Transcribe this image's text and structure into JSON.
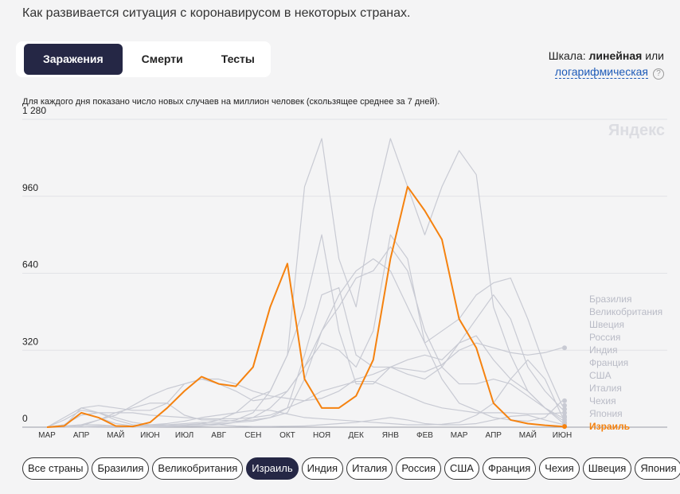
{
  "header": {
    "title": "Как развивается ситуация с коронавирусом в некоторых странах."
  },
  "tabs": {
    "items": [
      "Заражения",
      "Смерти",
      "Тесты"
    ],
    "selected_index": 0
  },
  "scale": {
    "label": "Шкала:",
    "options": [
      "линейная",
      "логарифмическая"
    ],
    "joiner": "или",
    "help": "?"
  },
  "note": "Для каждого дня показано число новых случаев на миллион человек (скользящее среднее за 7 дней).",
  "watermark": "Яндекс",
  "chips": {
    "items": [
      "Все страны",
      "Бразилия",
      "Великобритания",
      "Израиль",
      "Индия",
      "Италия",
      "Россия",
      "США",
      "Франция",
      "Чехия",
      "Швеция",
      "Япония"
    ],
    "selected_index": 3
  },
  "chart_data": {
    "type": "line",
    "categories": [
      "МАР",
      null,
      "АПР",
      null,
      "МАЙ",
      null,
      "ИЮН",
      null,
      "ИЮЛ",
      null,
      "АВГ",
      null,
      "СЕН",
      null,
      "ОКТ",
      null,
      "НОЯ",
      null,
      "ДЕК",
      null,
      "ЯНВ",
      null,
      "ФЕВ",
      null,
      "МАР",
      null,
      "АПР",
      null,
      "МАЙ",
      null,
      "ИЮН"
    ],
    "ylim": [
      0,
      1280
    ],
    "yticks": [
      0,
      320,
      640,
      960,
      {
        "value": 1280,
        "label": "1 280"
      }
    ],
    "grid": true,
    "highlight": "Израиль",
    "series": [
      {
        "name": "Бразилия",
        "color": "#c8cad3",
        "values": [
          0,
          2,
          10,
          30,
          50,
          90,
          130,
          160,
          180,
          200,
          200,
          180,
          150,
          130,
          120,
          110,
          120,
          150,
          200,
          220,
          250,
          240,
          230,
          260,
          320,
          350,
          330,
          310,
          300,
          310,
          330
        ]
      },
      {
        "name": "Великобритания",
        "color": "#c8cad3",
        "values": [
          0,
          30,
          70,
          60,
          40,
          20,
          10,
          10,
          8,
          10,
          15,
          20,
          40,
          80,
          150,
          250,
          350,
          320,
          250,
          400,
          800,
          700,
          350,
          200,
          100,
          70,
          40,
          30,
          25,
          40,
          110
        ]
      },
      {
        "name": "Швеция",
        "color": "#c8cad3",
        "values": [
          0,
          10,
          50,
          60,
          60,
          80,
          100,
          100,
          50,
          30,
          30,
          25,
          30,
          40,
          60,
          200,
          400,
          550,
          650,
          700,
          650,
          500,
          350,
          400,
          450,
          550,
          600,
          620,
          450,
          250,
          90
        ]
      },
      {
        "name": "Россия",
        "color": "#c8cad3",
        "values": [
          0,
          0,
          5,
          30,
          60,
          60,
          50,
          45,
          40,
          35,
          35,
          35,
          40,
          50,
          80,
          110,
          150,
          170,
          190,
          190,
          160,
          130,
          100,
          80,
          70,
          60,
          60,
          60,
          55,
          55,
          60
        ]
      },
      {
        "name": "Индия",
        "color": "#c8cad3",
        "values": [
          0,
          0,
          0,
          1,
          2,
          5,
          10,
          15,
          25,
          40,
          50,
          60,
          70,
          70,
          55,
          40,
          35,
          30,
          25,
          20,
          15,
          10,
          10,
          12,
          20,
          50,
          100,
          200,
          280,
          200,
          45
        ]
      },
      {
        "name": "Франция",
        "color": "#c8cad3",
        "values": [
          0,
          10,
          60,
          40,
          15,
          5,
          5,
          5,
          10,
          15,
          30,
          60,
          120,
          150,
          300,
          500,
          800,
          400,
          180,
          180,
          250,
          280,
          300,
          280,
          350,
          450,
          550,
          450,
          250,
          150,
          75
        ]
      },
      {
        "name": "США",
        "color": "#c8cad3",
        "values": [
          0,
          5,
          80,
          90,
          80,
          70,
          70,
          100,
          180,
          200,
          180,
          150,
          110,
          120,
          150,
          250,
          400,
          500,
          620,
          650,
          750,
          650,
          400,
          250,
          180,
          180,
          200,
          180,
          130,
          80,
          40
        ]
      },
      {
        "name": "Италия",
        "color": "#c8cad3",
        "values": [
          0,
          40,
          80,
          60,
          30,
          10,
          5,
          3,
          3,
          5,
          10,
          20,
          25,
          40,
          80,
          300,
          550,
          580,
          300,
          250,
          250,
          220,
          200,
          250,
          350,
          380,
          280,
          200,
          150,
          80,
          30
        ]
      },
      {
        "name": "Чехия",
        "color": "#c8cad3",
        "values": [
          0,
          5,
          10,
          10,
          5,
          5,
          5,
          10,
          15,
          20,
          20,
          30,
          60,
          150,
          300,
          1000,
          1200,
          700,
          500,
          900,
          1200,
          1000,
          800,
          1000,
          1150,
          1050,
          500,
          300,
          150,
          80,
          20
        ]
      },
      {
        "name": "Япония",
        "color": "#c8cad3",
        "values": [
          0,
          0,
          2,
          5,
          3,
          0,
          1,
          2,
          5,
          15,
          10,
          5,
          3,
          3,
          4,
          5,
          10,
          15,
          20,
          30,
          40,
          30,
          15,
          10,
          10,
          15,
          30,
          45,
          50,
          30,
          12
        ]
      },
      {
        "name": "Израиль",
        "color": "#f5820f",
        "values": [
          0,
          5,
          60,
          40,
          5,
          3,
          20,
          80,
          150,
          210,
          180,
          170,
          250,
          500,
          680,
          200,
          80,
          80,
          130,
          280,
          700,
          1000,
          900,
          780,
          450,
          330,
          100,
          30,
          15,
          8,
          3
        ]
      }
    ]
  }
}
